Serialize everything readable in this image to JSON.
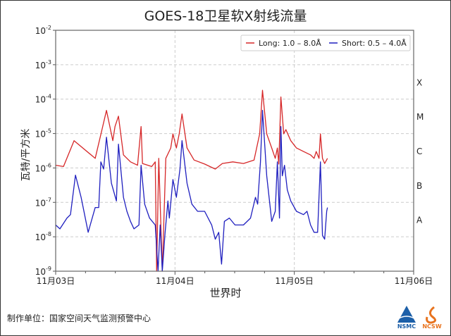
{
  "chart_data": {
    "type": "line",
    "title": "GOES-18卫星软X射线流量",
    "xlabel": "世界时",
    "ylabel": "瓦特/平方米",
    "yscale": "log",
    "ylim": [
      1e-09,
      0.01
    ],
    "xlim": [
      "11-03 00:00",
      "11-06 00:00"
    ],
    "x_tick_labels": [
      "11月03日",
      "11月04日",
      "11月05日",
      "11月06日"
    ],
    "y_tick_labels": [
      {
        "base": "10",
        "exp": "-9"
      },
      {
        "base": "10",
        "exp": "-8"
      },
      {
        "base": "10",
        "exp": "-7"
      },
      {
        "base": "10",
        "exp": "-6"
      },
      {
        "base": "10",
        "exp": "-5"
      },
      {
        "base": "10",
        "exp": "-4"
      },
      {
        "base": "10",
        "exp": "-3"
      },
      {
        "base": "10",
        "exp": "-2"
      }
    ],
    "flare_classes": [
      "A",
      "B",
      "C",
      "M",
      "X"
    ],
    "grid": true,
    "legend_position": "top-right",
    "series": [
      {
        "name": "Long: 1.0 – 8.0Å",
        "color": "#d62728",
        "points": [
          [
            "11-03 00:00",
            1.2e-06
          ],
          [
            "11-03 01:34",
            1.1e-06
          ],
          [
            "11-03 03:42",
            6.2e-06
          ],
          [
            "11-03 07:57",
            1.9e-06
          ],
          [
            "11-03 09:22",
            1.4e-05
          ],
          [
            "11-03 10:13",
            4.7e-05
          ],
          [
            "11-03 11:30",
            6.2e-06
          ],
          [
            "11-03 11:56",
            1.6e-05
          ],
          [
            "11-03 12:38",
            3.2e-05
          ],
          [
            "11-03 13:38",
            2.4e-06
          ],
          [
            "11-03 15:03",
            1.5e-06
          ],
          [
            "11-03 16:28",
            1.2e-06
          ],
          [
            "11-03 17:11",
            1.6e-05
          ],
          [
            "11-03 17:28",
            1.35e-06
          ],
          [
            "11-03 19:19",
            1.1e-06
          ],
          [
            "11-03 20:02",
            1.5e-06
          ],
          [
            "11-03 20:19",
            1e-09
          ],
          [
            "11-03 20:44",
            1.9e-06
          ],
          [
            "11-03 21:27",
            1e-09
          ],
          [
            "11-03 22:09",
            1.9e-06
          ],
          [
            "11-03 23:09",
            3.8e-06
          ],
          [
            "11-03 23:35",
            9.8e-06
          ],
          [
            "11-04 00:17",
            3.8e-06
          ],
          [
            "11-04 00:51",
            9.8e-06
          ],
          [
            "11-04 01:25",
            3.7e-05
          ],
          [
            "11-04 02:25",
            3.8e-06
          ],
          [
            "11-04 03:50",
            1.7e-06
          ],
          [
            "11-04 05:58",
            1.3e-06
          ],
          [
            "11-04 08:06",
            9.3e-07
          ],
          [
            "11-04 09:31",
            1.35e-06
          ],
          [
            "11-04 11:38",
            1.5e-06
          ],
          [
            "11-04 13:46",
            1.35e-06
          ],
          [
            "11-04 15:54",
            1.7e-06
          ],
          [
            "11-04 17:02",
            9.8e-06
          ],
          [
            "11-04 17:36",
            0.00018
          ],
          [
            "11-04 18:27",
            9.8e-06
          ],
          [
            "11-04 19:27",
            3.8e-06
          ],
          [
            "11-04 20:10",
            1.9e-06
          ],
          [
            "11-04 20:35",
            3.8e-06
          ],
          [
            "11-04 20:52",
            1.3e-06
          ],
          [
            "11-04 21:18",
            0.000115
          ],
          [
            "11-04 21:52",
            9.8e-06
          ],
          [
            "11-04 22:18",
            1.3e-05
          ],
          [
            "11-04 23:17",
            6.2e-06
          ],
          [
            "11-05 00:26",
            3.8e-06
          ],
          [
            "11-05 01:51",
            3e-06
          ],
          [
            "11-05 03:16",
            2.4e-06
          ],
          [
            "11-05 03:58",
            1.9e-06
          ],
          [
            "11-05 04:24",
            3e-06
          ],
          [
            "11-05 04:58",
            1.9e-06
          ],
          [
            "11-05 05:15",
            9.8e-06
          ],
          [
            "11-05 05:40",
            1.9e-06
          ],
          [
            "11-05 06:06",
            1.35e-06
          ],
          [
            "11-05 06:40",
            1.9e-06
          ]
        ]
      },
      {
        "name": "Short: 0.5 – 4.0Å",
        "color": "#1f1fbf",
        "points": [
          [
            "11-03 00:00",
            2.2e-08
          ],
          [
            "11-03 00:51",
            1.7e-08
          ],
          [
            "11-03 02:16",
            3.5e-08
          ],
          [
            "11-03 02:59",
            4.4e-08
          ],
          [
            "11-03 03:59",
            6.2e-07
          ],
          [
            "11-03 05:07",
            1.4e-07
          ],
          [
            "11-03 06:32",
            1.35e-08
          ],
          [
            "11-03 07:57",
            7.1e-08
          ],
          [
            "11-03 08:40",
            7.1e-08
          ],
          [
            "11-03 09:05",
            1.5e-06
          ],
          [
            "11-03 09:39",
            9.3e-07
          ],
          [
            "11-03 10:13",
            7.8e-06
          ],
          [
            "11-03 11:13",
            3.6e-07
          ],
          [
            "11-03 12:13",
            1.1e-07
          ],
          [
            "11-03 12:38",
            4.9e-06
          ],
          [
            "11-03 13:38",
            1.4e-07
          ],
          [
            "11-03 14:20",
            5.5e-08
          ],
          [
            "11-03 15:03",
            2.8e-08
          ],
          [
            "11-03 15:45",
            1.7e-08
          ],
          [
            "11-03 16:45",
            2.2e-08
          ],
          [
            "11-03 17:11",
            1.2e-06
          ],
          [
            "11-03 17:54",
            8.9e-08
          ],
          [
            "11-03 18:53",
            3.5e-08
          ],
          [
            "11-03 20:02",
            2.2e-08
          ],
          [
            "11-03 20:36",
            1e-09
          ],
          [
            "11-03 21:01",
            2.2e-08
          ],
          [
            "11-03 21:27",
            1e-09
          ],
          [
            "11-03 22:01",
            1.35e-08
          ],
          [
            "11-03 22:35",
            1.1e-07
          ],
          [
            "11-03 22:52",
            3.5e-08
          ],
          [
            "11-03 23:35",
            4.6e-07
          ],
          [
            "11-04 00:17",
            1.4e-07
          ],
          [
            "11-04 01:00",
            9.3e-07
          ],
          [
            "11-04 01:25",
            6.2e-06
          ],
          [
            "11-04 02:25",
            3.6e-07
          ],
          [
            "11-04 03:24",
            8.9e-08
          ],
          [
            "11-04 04:33",
            5.5e-08
          ],
          [
            "11-04 05:58",
            5.5e-08
          ],
          [
            "11-04 07:23",
            2.2e-08
          ],
          [
            "11-04 08:06",
            8.5e-09
          ],
          [
            "11-04 08:48",
            1.35e-08
          ],
          [
            "11-04 09:22",
            1.6e-09
          ],
          [
            "11-04 09:56",
            2.8e-08
          ],
          [
            "11-04 10:56",
            3.5e-08
          ],
          [
            "11-04 12:04",
            2.2e-08
          ],
          [
            "11-04 13:46",
            2.2e-08
          ],
          [
            "11-04 15:11",
            3.5e-08
          ],
          [
            "11-04 16:11",
            1.4e-07
          ],
          [
            "11-04 16:37",
            8.9e-08
          ],
          [
            "11-04 17:11",
            1.5e-06
          ],
          [
            "11-04 17:36",
            4.7e-05
          ],
          [
            "11-04 18:27",
            5.9e-07
          ],
          [
            "11-04 19:27",
            2.8e-08
          ],
          [
            "11-04 20:10",
            5.5e-08
          ],
          [
            "11-04 20:35",
            1.5e-06
          ],
          [
            "11-04 21:01",
            3.5e-08
          ],
          [
            "11-04 21:18",
            1.6e-05
          ],
          [
            "11-04 21:35",
            5.9e-07
          ],
          [
            "11-04 22:01",
            1.2e-06
          ],
          [
            "11-04 22:35",
            2.3e-07
          ],
          [
            "11-04 23:17",
            1.1e-07
          ],
          [
            "11-05 00:26",
            5.5e-08
          ],
          [
            "11-05 01:51",
            4.4e-08
          ],
          [
            "11-05 02:33",
            5.5e-08
          ],
          [
            "11-05 03:16",
            2.2e-08
          ],
          [
            "11-05 03:58",
            1.35e-08
          ],
          [
            "11-05 04:41",
            1.35e-08
          ],
          [
            "11-05 05:15",
            1.5e-06
          ],
          [
            "11-05 05:40",
            1.1e-08
          ],
          [
            "11-05 06:06",
            8.5e-09
          ],
          [
            "11-05 06:31",
            5.5e-08
          ],
          [
            "11-05 06:40",
            7.1e-08
          ]
        ]
      }
    ]
  },
  "footer": {
    "credit": "制作单位：国家空间天气监测预警中心",
    "logos": [
      "NSMC",
      "NCSW"
    ]
  }
}
